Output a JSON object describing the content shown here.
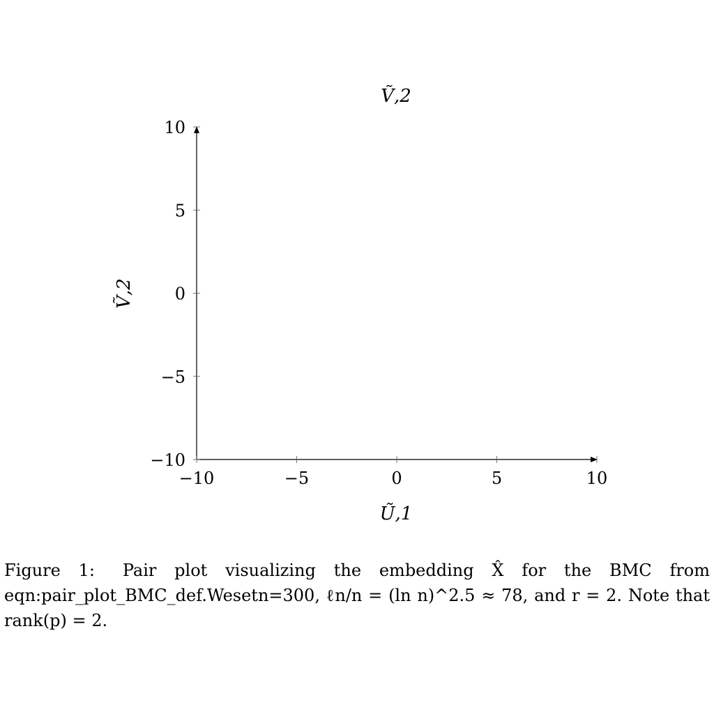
{
  "chart_data": {
    "type": "scatter",
    "title": "Ṽ,2",
    "xlabel": "Ũ,1",
    "ylabel": "Ṽ,2",
    "xlim": [
      -10,
      10
    ],
    "ylim": [
      -10,
      10
    ],
    "xticks": [
      -10,
      -5,
      0,
      5,
      10
    ],
    "yticks": [
      -10,
      -5,
      0,
      5,
      10
    ],
    "xtick_labels": [
      "−10",
      "−5",
      "0",
      "5",
      "10"
    ],
    "ytick_labels": [
      "−10",
      "−5",
      "0",
      "5",
      "10"
    ],
    "grid": false,
    "series": []
  },
  "caption": {
    "label": "Figure 1:",
    "text": "Pair plot visualizing the embedding X̂ for the BMC from eqn:pair_plot_BMC_def.Wesetn=300, ℓn/n = (ln n)^2.5 ≈ 78, and r = 2. Note that rank(p) = 2."
  }
}
